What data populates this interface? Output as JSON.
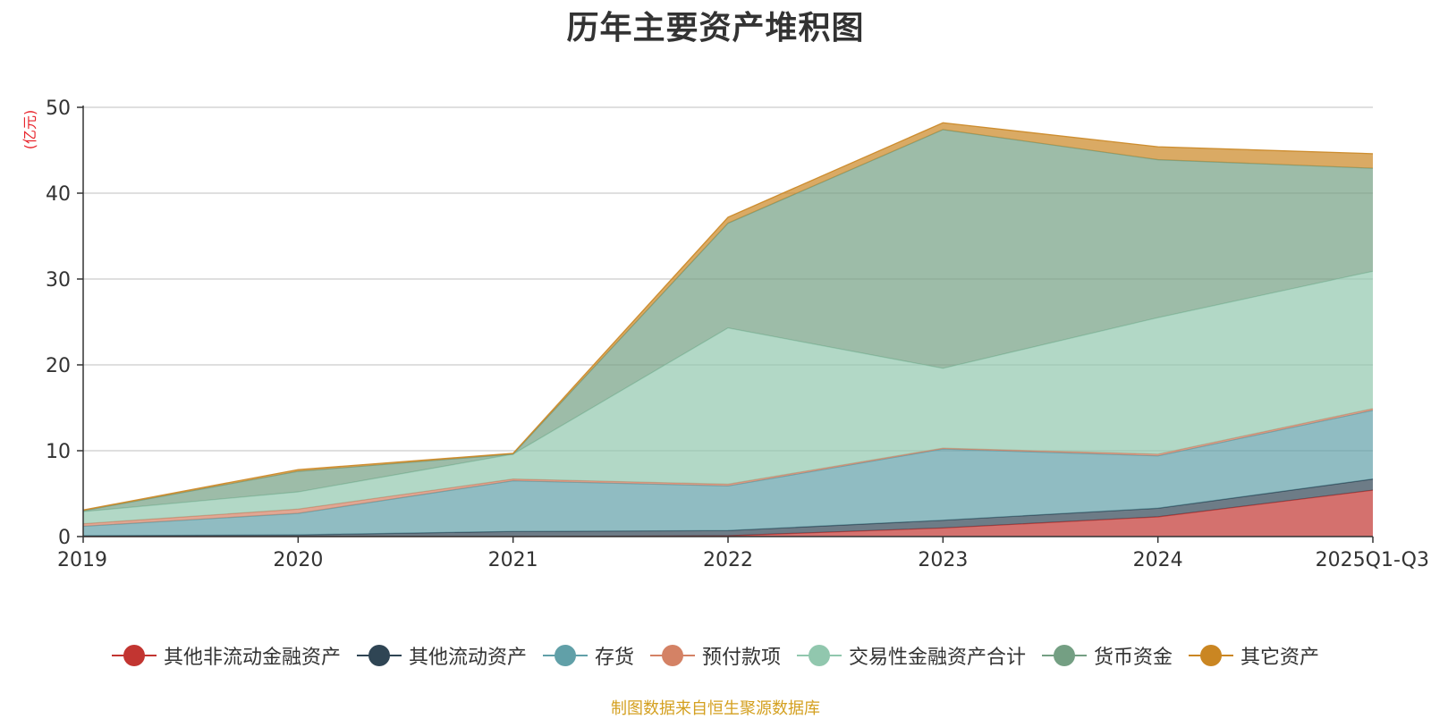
{
  "chart_data": {
    "type": "area",
    "stacked": true,
    "title": "历年主要资产堆积图",
    "unit_label": "(亿元)",
    "categories": [
      "2019",
      "2020",
      "2021",
      "2022",
      "2023",
      "2024",
      "2025Q1-Q3"
    ],
    "ylim": [
      0,
      50
    ],
    "yticks": [
      "0",
      "10",
      "20",
      "30",
      "40",
      "50"
    ],
    "grid": true,
    "legend_position": "bottom",
    "series": [
      {
        "name": "其他非流动金融资产",
        "color": "#c23531",
        "values": [
          0,
          0,
          0,
          0.1,
          1.0,
          2.3,
          5.4
        ]
      },
      {
        "name": "其他流动资产",
        "color": "#2f4554",
        "values": [
          0.1,
          0.2,
          0.6,
          0.6,
          0.9,
          1.0,
          1.3
        ]
      },
      {
        "name": "存货",
        "color": "#61a0a8",
        "values": [
          1.1,
          2.5,
          5.9,
          5.2,
          8.3,
          6.1,
          8.0
        ]
      },
      {
        "name": "预付款项",
        "color": "#d48265",
        "values": [
          0.3,
          0.5,
          0.2,
          0.2,
          0.1,
          0.2,
          0.2
        ]
      },
      {
        "name": "交易性金融资产合计",
        "color": "#91c7ae",
        "values": [
          1.4,
          2.0,
          2.9,
          18.2,
          9.3,
          15.9,
          16.0
        ]
      },
      {
        "name": "货币资金",
        "color": "#749f83",
        "values": [
          0.1,
          2.4,
          0,
          12.2,
          27.8,
          18.4,
          12.0
        ]
      },
      {
        "name": "其它资产",
        "color": "#ca8622",
        "values": [
          0.1,
          0.2,
          0.1,
          0.7,
          0.8,
          1.5,
          1.7
        ]
      }
    ]
  },
  "source_note": "制图数据来自恒生聚源数据库"
}
